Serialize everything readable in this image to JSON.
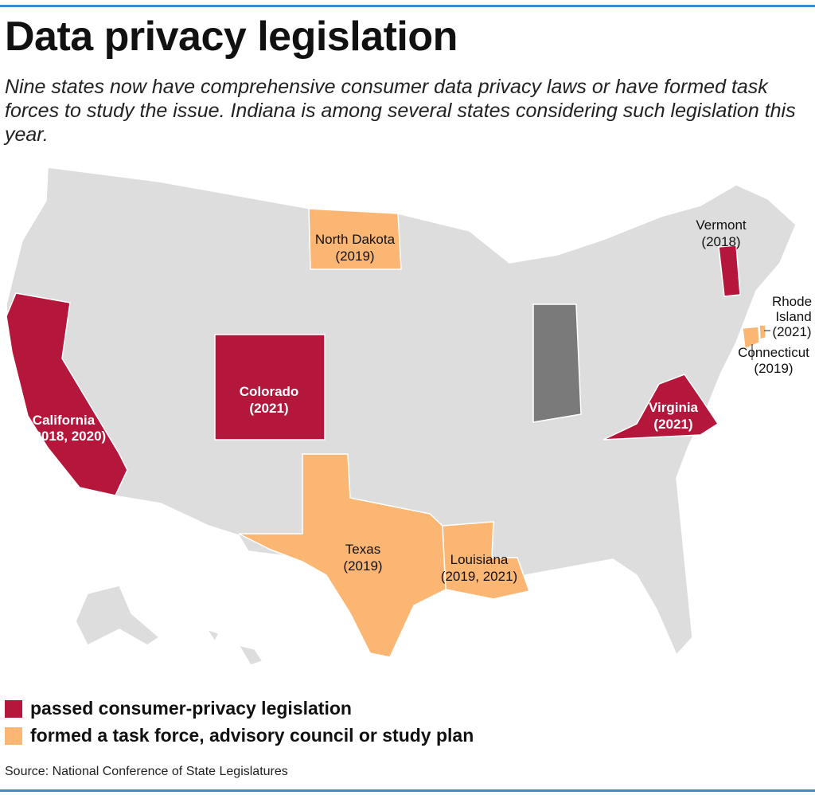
{
  "title": "Data privacy legislation",
  "subtitle": "Nine states now have comprehensive consumer data privacy laws or have formed task forces to study the issue. Indiana is among several states considering such legislation this year.",
  "colors": {
    "passed": "#b5163b",
    "task_force": "#fbb673",
    "indiana": "#7a7a7a",
    "other": "#dddddd",
    "rule": "#3a8ccf"
  },
  "states": {
    "california": {
      "name": "California",
      "years": "(2018, 2020)",
      "category": "passed"
    },
    "colorado": {
      "name": "Colorado",
      "years": "(2021)",
      "category": "passed"
    },
    "virginia": {
      "name": "Virginia",
      "years": "(2021)",
      "category": "passed"
    },
    "vermont": {
      "name": "Vermont",
      "years": "(2018)",
      "category": "passed"
    },
    "north_dakota": {
      "name": "North Dakota",
      "years": "(2019)",
      "category": "task_force"
    },
    "texas": {
      "name": "Texas",
      "years": "(2019)",
      "category": "task_force"
    },
    "louisiana": {
      "name": "Louisiana",
      "years": "(2019, 2021)",
      "category": "task_force"
    },
    "connecticut": {
      "name": "Connecticut",
      "years": "(2019)",
      "category": "task_force"
    },
    "rhode_island": {
      "name1": "Rhode",
      "name2": "Island",
      "years": "(2021)",
      "category": "task_force"
    }
  },
  "legend": [
    {
      "label": "passed consumer-privacy legislation",
      "color": "#b5163b"
    },
    {
      "label": "formed a task force, advisory council or study plan",
      "color": "#fbb673"
    }
  ],
  "source": "Source: National Conference of State Legislatures"
}
